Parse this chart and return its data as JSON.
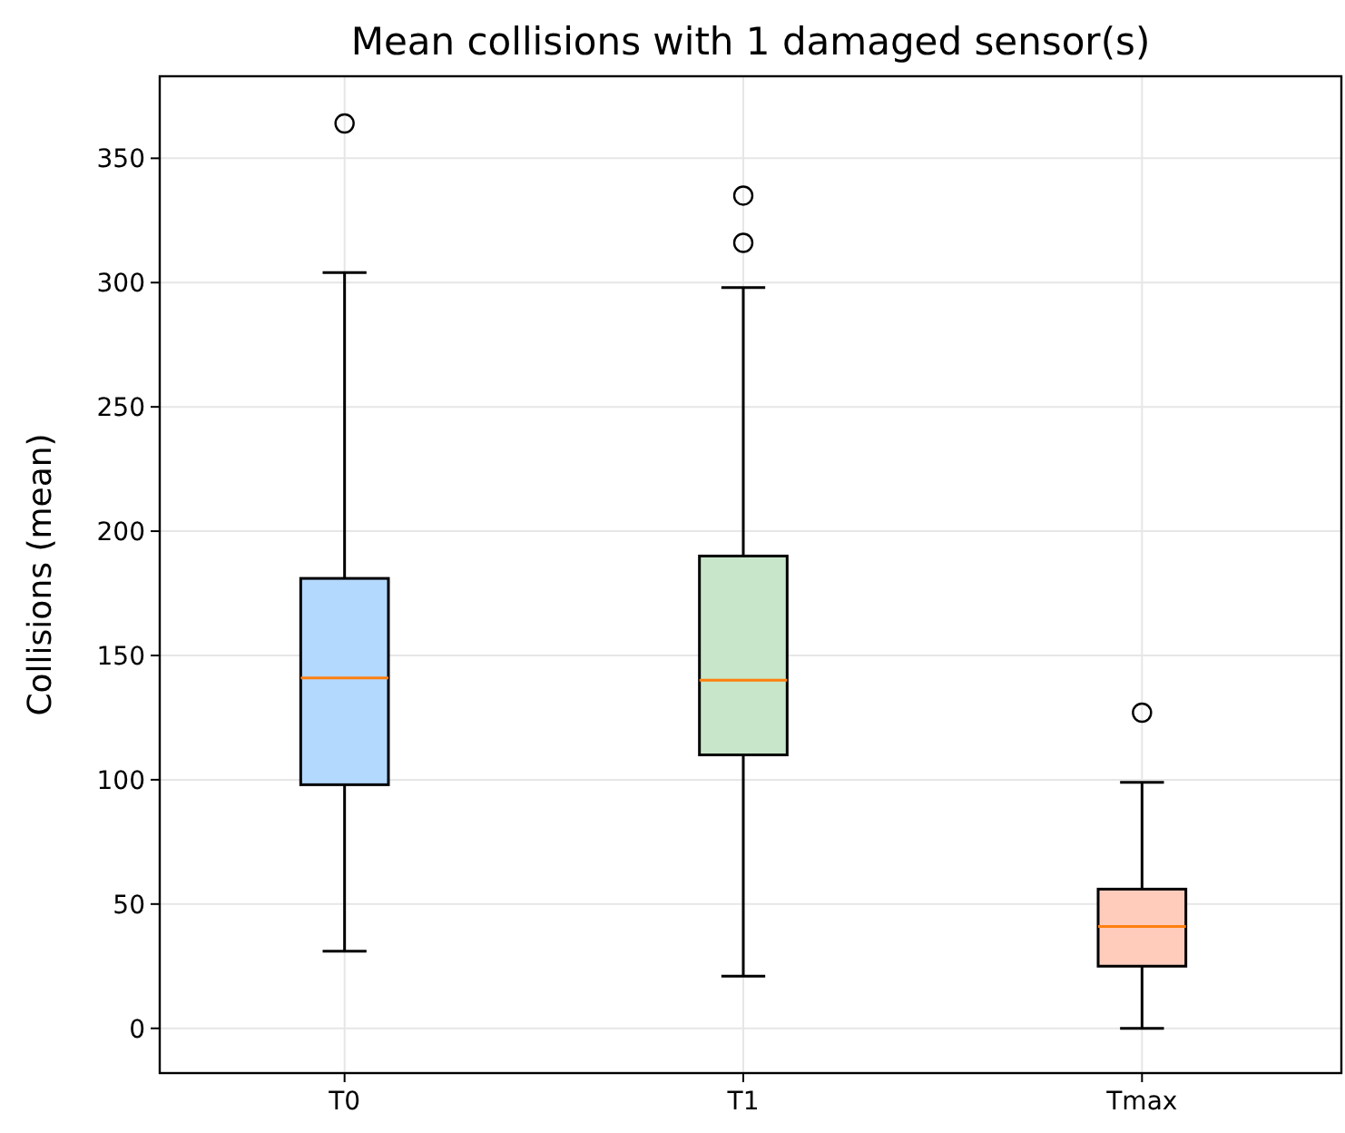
{
  "chart_data": {
    "type": "box",
    "title": "Mean collisions with 1 damaged sensor(s)",
    "ylabel": "Collisions (mean)",
    "categories": [
      "T0",
      "T1",
      "Tmax"
    ],
    "boxes": [
      {
        "low": 31,
        "q1": 98,
        "median": 141,
        "q3": 181,
        "high": 304,
        "outliers": [
          364
        ]
      },
      {
        "low": 21,
        "q1": 110,
        "median": 140,
        "q3": 190,
        "high": 298,
        "outliers": [
          316,
          335
        ]
      },
      {
        "low": 0,
        "q1": 25,
        "median": 41,
        "q3": 56,
        "high": 99,
        "outliers": [
          127
        ]
      }
    ],
    "colors": [
      "#b3d9ff",
      "#c8e6c9",
      "#ffccbc"
    ],
    "ylim": [
      -18,
      383
    ],
    "yticks": [
      0,
      50,
      100,
      150,
      200,
      250,
      300,
      350
    ],
    "grid": true
  }
}
